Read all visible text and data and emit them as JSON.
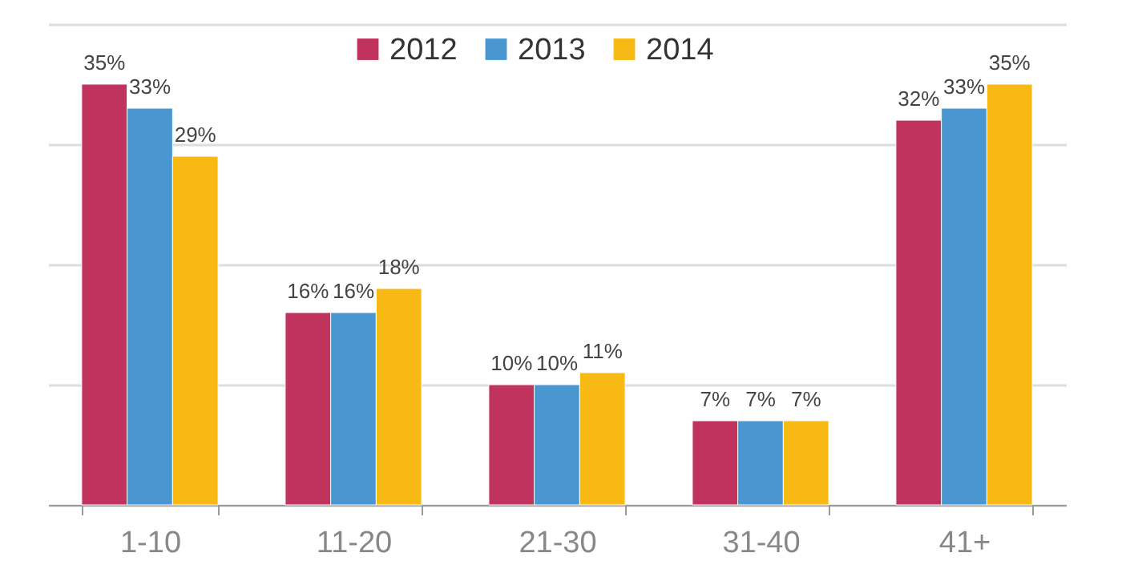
{
  "chart_data": {
    "type": "bar",
    "categories": [
      "1-10",
      "11-20",
      "21-30",
      "31-40",
      "41+"
    ],
    "series": [
      {
        "name": "2012",
        "color": "#c0335f",
        "values": [
          35,
          16,
          10,
          7,
          32
        ],
        "value_labels": [
          "35%",
          "16%",
          "10%",
          "7%",
          "32%"
        ]
      },
      {
        "name": "2013",
        "color": "#4a96d0",
        "values": [
          33,
          16,
          10,
          7,
          33
        ],
        "value_labels": [
          "33%",
          "16%",
          "10%",
          "7%",
          "33%"
        ]
      },
      {
        "name": "2014",
        "color": "#f9b914",
        "values": [
          29,
          18,
          11,
          7,
          35
        ],
        "value_labels": [
          "29%",
          "18%",
          "11%",
          "7%",
          "35%"
        ]
      }
    ],
    "ylim": [
      0,
      40
    ],
    "yticks": [
      {
        "value": 0,
        "label": null
      },
      {
        "value": 10,
        "label": null
      },
      {
        "value": 20,
        "label": null
      },
      {
        "value": 30,
        "label": null
      },
      {
        "value": 40,
        "label": null
      }
    ],
    "grid": "y",
    "legend": "top",
    "tick_labels": "x"
  }
}
